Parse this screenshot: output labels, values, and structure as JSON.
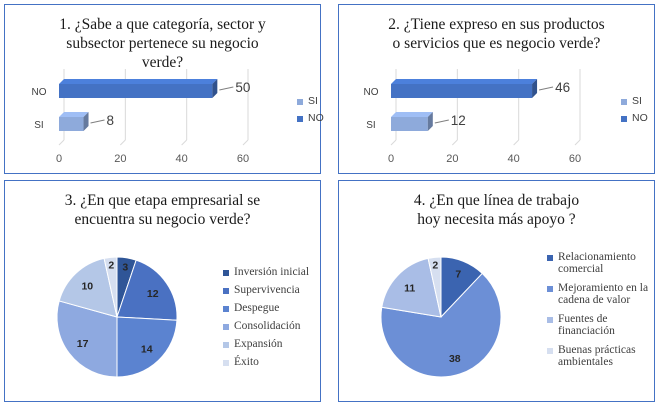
{
  "colors": {
    "si": "#8eaadb",
    "no": "#4472c4",
    "border": "#4472c4",
    "gridline": "#d9d9d9"
  },
  "chart_data": [
    {
      "type": "bar",
      "orientation": "horizontal",
      "title": "1. ¿Sabe a que categoría, sector y subsector pertenece su negocio verde?",
      "categories": [
        "SI",
        "NO"
      ],
      "values": [
        8,
        50
      ],
      "xlim": [
        0,
        60
      ],
      "xticks": [
        "0",
        "20",
        "40",
        "60"
      ],
      "legend": [
        "SI",
        "NO"
      ],
      "legend_position": "right",
      "grid": true
    },
    {
      "type": "bar",
      "orientation": "horizontal",
      "title": "2. ¿Tiene expreso en sus productos o servicios que es negocio verde?",
      "categories": [
        "SI",
        "NO"
      ],
      "values": [
        12,
        46
      ],
      "xlim": [
        0,
        60
      ],
      "xticks": [
        "0",
        "20",
        "40",
        "60"
      ],
      "legend": [
        "SI",
        "NO"
      ],
      "legend_position": "right",
      "grid": true
    },
    {
      "type": "pie",
      "title": "3. ¿En que etapa empresarial se encuentra su negocio verde?",
      "labels": [
        "Inversión inicial",
        "Supervivencia",
        "Despegue",
        "Consolidación",
        "Expansión",
        "Éxito"
      ],
      "values": [
        3,
        12,
        14,
        17,
        10,
        2
      ],
      "colors": [
        "#2f5597",
        "#4a71c2",
        "#5b83d0",
        "#8ea9e0",
        "#b4c7e7",
        "#d6dff0"
      ],
      "legend_position": "right"
    },
    {
      "type": "pie",
      "title": "4. ¿En que línea de trabajo hoy necesita más apoyo ?",
      "labels": [
        "Relacionamiento comercial",
        "Mejoramiento en la cadena de valor",
        "Fuentes de financiación",
        "Buenas prácticas ambientales"
      ],
      "values": [
        7,
        38,
        11,
        2
      ],
      "colors": [
        "#3b64b0",
        "#6c8fd6",
        "#a9bde6",
        "#d6dff0"
      ],
      "legend_position": "right"
    }
  ]
}
